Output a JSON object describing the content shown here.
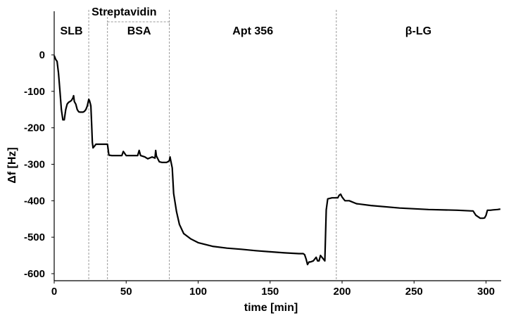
{
  "chart_data": {
    "type": "line",
    "xlabel": "time [min]",
    "ylabel": "Δf [Hz]",
    "xlim": [
      0,
      310
    ],
    "ylim": [
      -600,
      0
    ],
    "x_ticks": [
      0,
      50,
      100,
      150,
      200,
      250,
      300
    ],
    "y_ticks": [
      0,
      -100,
      -200,
      -300,
      -400,
      -500,
      -600
    ],
    "grid": false,
    "phase_boundaries": [
      24,
      37,
      80,
      196
    ],
    "phases": [
      {
        "label": "SLB",
        "x": 12
      },
      {
        "label": "Streptavidin",
        "x": 24
      },
      {
        "label": "BSA",
        "x": 59
      },
      {
        "label": "Apt 356",
        "x": 138
      },
      {
        "label": "β-LG",
        "x": 253
      }
    ],
    "series": [
      {
        "color": "#000000",
        "x": [
          0,
          1,
          2,
          3,
          4,
          5,
          6,
          7,
          8,
          9,
          10,
          11,
          12,
          13,
          13.5,
          14,
          15,
          16,
          17,
          18,
          19,
          20,
          21,
          22,
          23,
          24,
          24.5,
          25,
          25.5,
          26,
          26.5,
          27,
          28,
          29,
          30,
          32,
          35,
          37,
          38,
          40,
          45,
          47,
          48,
          50,
          55,
          58,
          59,
          60,
          63,
          65,
          68,
          70,
          70.5,
          71,
          72,
          73,
          75,
          78,
          79,
          80,
          80.5,
          81,
          82,
          83,
          85,
          87,
          90,
          95,
          100,
          110,
          120,
          130,
          140,
          150,
          160,
          170,
          173,
          174,
          175,
          176,
          177,
          178,
          180,
          182,
          183,
          184,
          185,
          186,
          187,
          188,
          189,
          190,
          193,
          196,
          197,
          198,
          199,
          200,
          201,
          202,
          203,
          205,
          210,
          220,
          240,
          260,
          280,
          290,
          291,
          293,
          296,
          298,
          299,
          300,
          301,
          303,
          305,
          308,
          310
        ],
        "y": [
          -2,
          -12,
          -18,
          -50,
          -100,
          -150,
          -178,
          -178,
          -150,
          -135,
          -130,
          -128,
          -125,
          -118,
          -112,
          -128,
          -135,
          -150,
          -156,
          -157,
          -157,
          -157,
          -155,
          -150,
          -140,
          -122,
          -125,
          -132,
          -140,
          -190,
          -240,
          -255,
          -250,
          -245,
          -245,
          -245,
          -245,
          -245,
          -275,
          -276,
          -276,
          -276,
          -265,
          -276,
          -276,
          -276,
          -262,
          -276,
          -280,
          -285,
          -280,
          -283,
          -262,
          -277,
          -285,
          -293,
          -295,
          -295,
          -293,
          -290,
          -280,
          -290,
          -310,
          -380,
          -430,
          -465,
          -490,
          -505,
          -515,
          -525,
          -530,
          -533,
          -537,
          -540,
          -543,
          -545,
          -545,
          -548,
          -560,
          -575,
          -568,
          -568,
          -565,
          -555,
          -565,
          -565,
          -550,
          -555,
          -560,
          -565,
          -425,
          -395,
          -392,
          -392,
          -392,
          -385,
          -382,
          -390,
          -395,
          -400,
          -400,
          -400,
          -408,
          -413,
          -420,
          -424,
          -426,
          -428,
          -428,
          -440,
          -448,
          -448,
          -447,
          -440,
          -426,
          -426,
          -425,
          -424,
          -423
        ]
      }
    ]
  }
}
